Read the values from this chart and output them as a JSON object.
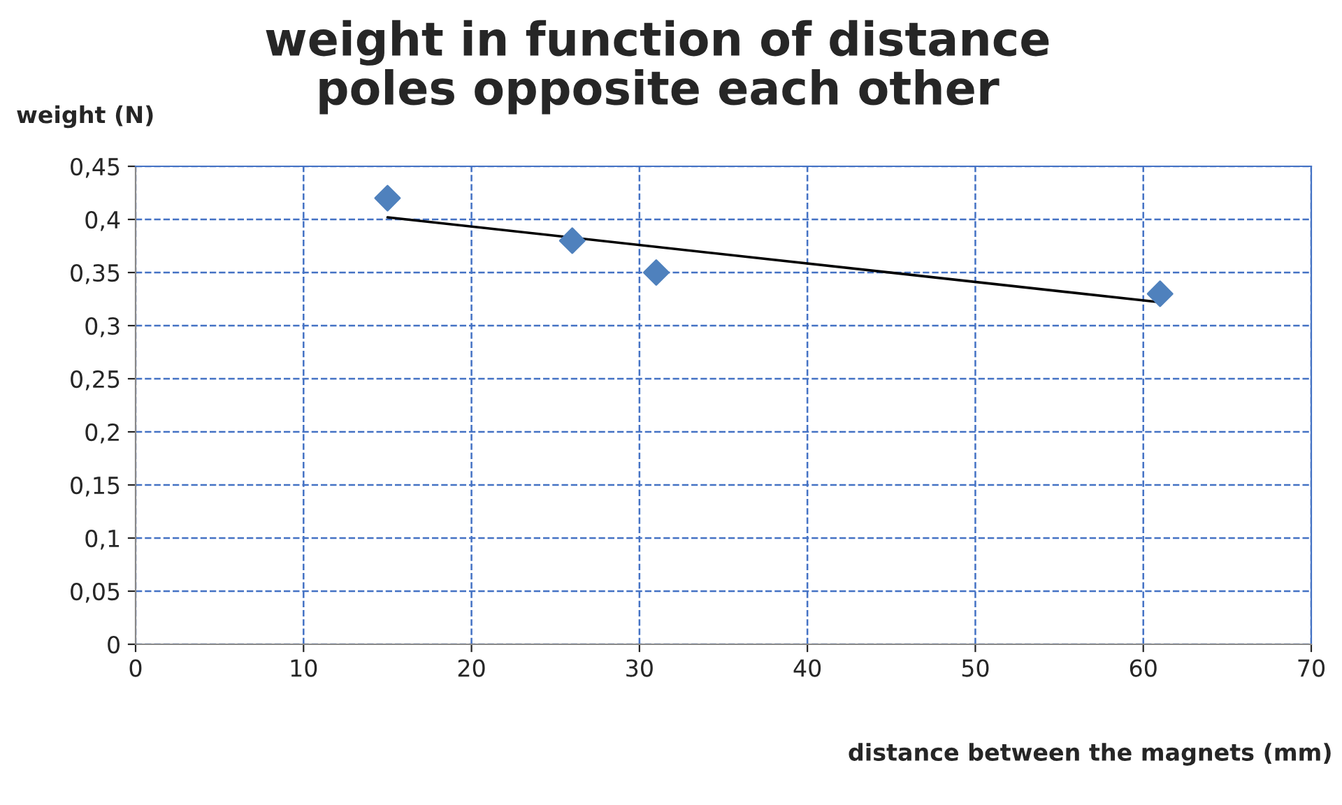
{
  "chart_data": {
    "type": "scatter",
    "title": "weight in function of distance\npoles opposite each other",
    "xlabel": "distance between the magnets (mm)",
    "ylabel": "weight (N)",
    "series": [
      {
        "color": "#4f81bd",
        "marker": "diamond",
        "x": [
          15,
          26,
          31,
          61
        ],
        "values": [
          0.42,
          0.38,
          0.35,
          0.33
        ]
      },
      {
        "type": "line",
        "color": "#000000",
        "marker": "none",
        "line_style": "solid",
        "x": [
          15,
          61
        ],
        "values": [
          0.402,
          0.322
        ]
      }
    ],
    "xlim": [
      0,
      70
    ],
    "xticks": [
      0,
      10,
      20,
      30,
      40,
      50,
      60,
      70
    ],
    "ylim": [
      0,
      0.45
    ],
    "yticks": [
      0,
      {
        "value": 0.05,
        "label": "0,05"
      },
      {
        "value": 0.1,
        "label": "0,1"
      },
      {
        "value": 0.15,
        "label": "0,15"
      },
      {
        "value": 0.2,
        "label": "0,2"
      },
      {
        "value": 0.25,
        "label": "0,25"
      },
      {
        "value": 0.3,
        "label": "0,3"
      },
      {
        "value": 0.35,
        "label": "0,35"
      },
      {
        "value": 0.4,
        "label": "0,4"
      },
      {
        "value": 0.45,
        "label": "0,45"
      }
    ],
    "grid": true,
    "legend": false
  }
}
